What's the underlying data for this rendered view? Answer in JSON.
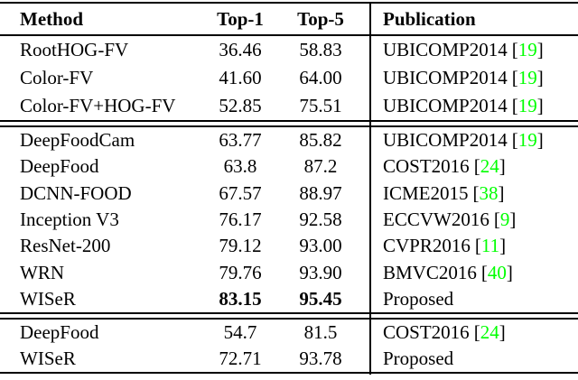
{
  "colors": {
    "citation_green": "#00ff00",
    "rule_black": "#000000",
    "background": "#ffffff"
  },
  "table": {
    "headers": {
      "method": "Method",
      "top1": "Top-1",
      "top5": "Top-5",
      "publication": "Publication"
    },
    "groups": [
      {
        "rows": [
          {
            "method": "RootHOG-FV",
            "top1": "36.46",
            "top5": "58.83",
            "publication": "UBICOMP2014",
            "cite": "19",
            "bold_scores": false
          },
          {
            "method": "Color-FV",
            "top1": "41.60",
            "top5": "64.00",
            "publication": "UBICOMP2014",
            "cite": "19",
            "bold_scores": false
          },
          {
            "method": "Color-FV+HOG-FV",
            "top1": "52.85",
            "top5": "75.51",
            "publication": "UBICOMP2014",
            "cite": "19",
            "bold_scores": false
          }
        ]
      },
      {
        "rows": [
          {
            "method": "DeepFoodCam",
            "top1": "63.77",
            "top5": "85.82",
            "publication": "UBICOMP2014",
            "cite": "19",
            "bold_scores": false
          },
          {
            "method": "DeepFood",
            "top1": "63.8",
            "top5": "87.2",
            "publication": "COST2016",
            "cite": "24",
            "bold_scores": false
          },
          {
            "method": "DCNN-FOOD",
            "top1": "67.57",
            "top5": "88.97",
            "publication": "ICME2015",
            "cite": "38",
            "bold_scores": false
          },
          {
            "method": "Inception V3",
            "top1": "76.17",
            "top5": "92.58",
            "publication": "ECCVW2016",
            "cite": "9",
            "bold_scores": false
          },
          {
            "method": "ResNet-200",
            "top1": "79.12",
            "top5": "93.00",
            "publication": "CVPR2016",
            "cite": "11",
            "bold_scores": false
          },
          {
            "method": "WRN",
            "top1": "79.76",
            "top5": "93.90",
            "publication": "BMVC2016",
            "cite": "40",
            "bold_scores": false
          },
          {
            "method": "WISeR",
            "top1": "83.15",
            "top5": "95.45",
            "publication": "Proposed",
            "cite": null,
            "bold_scores": true
          }
        ]
      },
      {
        "rows": [
          {
            "method": "DeepFood",
            "top1": "54.7",
            "top5": "81.5",
            "publication": "COST2016",
            "cite": "24",
            "bold_scores": false
          },
          {
            "method": "WISeR",
            "top1": "72.71",
            "top5": "93.78",
            "publication": "Proposed",
            "cite": null,
            "bold_scores": false
          }
        ]
      }
    ]
  }
}
